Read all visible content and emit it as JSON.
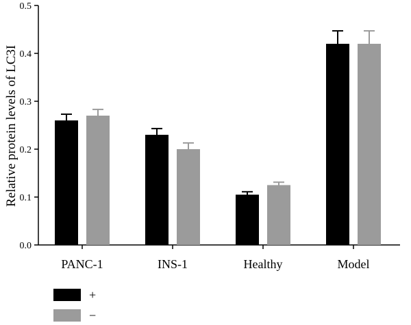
{
  "chart_data": {
    "type": "bar",
    "categories": [
      "PANC-1",
      "INS-1",
      "Healthy",
      "Model"
    ],
    "series": [
      {
        "name": "+",
        "color": "#000000",
        "values": [
          0.26,
          0.23,
          0.105,
          0.42
        ],
        "errors": [
          0.013,
          0.013,
          0.006,
          0.027
        ]
      },
      {
        "name": "−",
        "color": "#9b9b9b",
        "values": [
          0.27,
          0.2,
          0.125,
          0.42
        ],
        "errors": [
          0.013,
          0.013,
          0.006,
          0.027
        ]
      }
    ],
    "xlabel": "",
    "ylabel": "Relative protein levels of LC3I",
    "ylim": [
      0,
      0.5
    ],
    "yticks": [
      "0.0",
      "0.1",
      "0.2",
      "0.3",
      "0.4",
      "0.5"
    ],
    "grid": false,
    "legend": "bottom-left"
  }
}
